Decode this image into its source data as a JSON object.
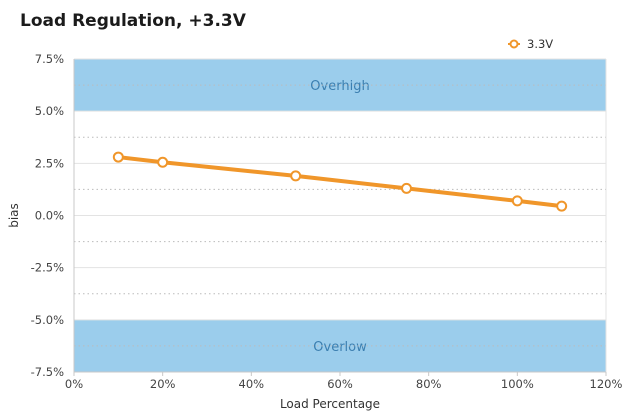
{
  "chart_data": {
    "type": "line",
    "title": "Load Regulation, +3.3V",
    "xlabel": "Load Percentage",
    "ylabel": "bias",
    "xlim": [
      0,
      120
    ],
    "ylim": [
      -7.5,
      7.5
    ],
    "x_ticks": [
      "0%",
      "20%",
      "40%",
      "60%",
      "80%",
      "100%",
      "120%"
    ],
    "y_ticks": [
      "7.5%",
      "5.0%",
      "2.5%",
      "0.0%",
      "-2.5%",
      "-5.0%",
      "-7.5%"
    ],
    "bands": [
      {
        "label": "Overhigh",
        "from": 5.0,
        "to": 7.5,
        "color": "#9bcdec"
      },
      {
        "label": "Overlow",
        "from": -7.5,
        "to": -5.0,
        "color": "#9bcdec"
      }
    ],
    "series": [
      {
        "name": "3.3V",
        "color": "#f0962a",
        "x": [
          10,
          20,
          50,
          75,
          100,
          110
        ],
        "y": [
          2.8,
          2.55,
          1.9,
          1.3,
          0.7,
          0.45
        ]
      }
    ],
    "legend": "top-right",
    "grid": true
  }
}
